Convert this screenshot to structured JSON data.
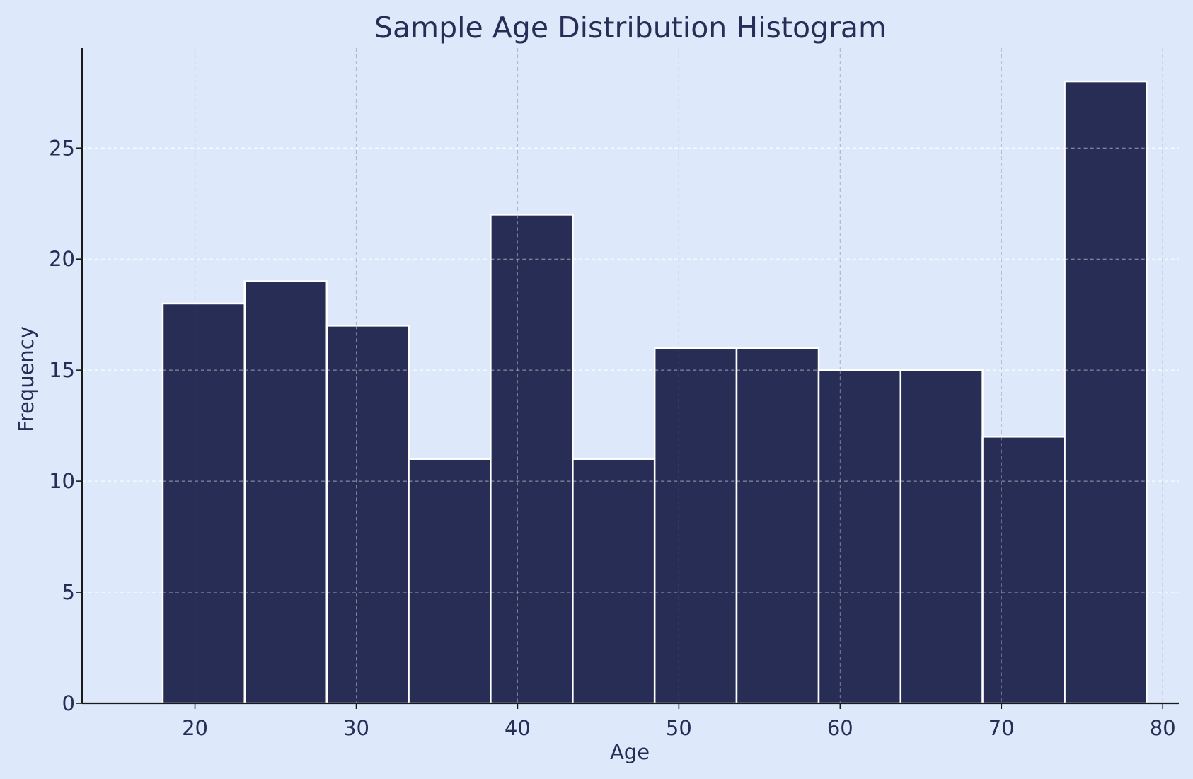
{
  "chart_data": {
    "type": "bar",
    "title": "Sample Age Distribution Histogram",
    "xlabel": "Age",
    "ylabel": "Frequency",
    "bin_edges": [
      18,
      23.08,
      28.17,
      33.25,
      38.33,
      43.42,
      48.5,
      53.58,
      58.67,
      63.75,
      68.83,
      73.92,
      79
    ],
    "values": [
      18,
      19,
      17,
      11,
      22,
      11,
      16,
      16,
      15,
      15,
      12,
      28
    ],
    "xlim": [
      13,
      81
    ],
    "ylim": [
      0,
      29.5
    ],
    "xticks": [
      20,
      30,
      40,
      50,
      60,
      70,
      80
    ],
    "yticks": [
      0,
      5,
      10,
      15,
      20,
      25
    ],
    "grid": true,
    "colors": {
      "background": "#dde8fb",
      "bar_fill": "#272d55",
      "bar_edge": "#ffffff",
      "text": "#272d55",
      "axis": "#1a1a1a",
      "grid_vertical": "#b3b9c6",
      "grid_horizontal": "#ffffff"
    }
  }
}
